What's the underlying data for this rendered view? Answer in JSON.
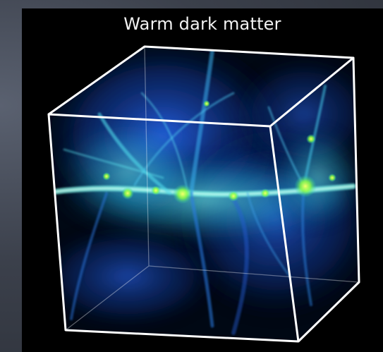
{
  "slide": {
    "title": "Warm dark matter"
  },
  "image": {
    "subject": "cosmic-web-simulation-cube",
    "colors": {
      "background": "#000000",
      "slide_background": "#3b404b",
      "cube_edges": "#ffffff",
      "filament_cyan": "#3fd6e0",
      "filament_blue": "#1f5fd8",
      "halo_green": "#b6ff3a"
    }
  }
}
